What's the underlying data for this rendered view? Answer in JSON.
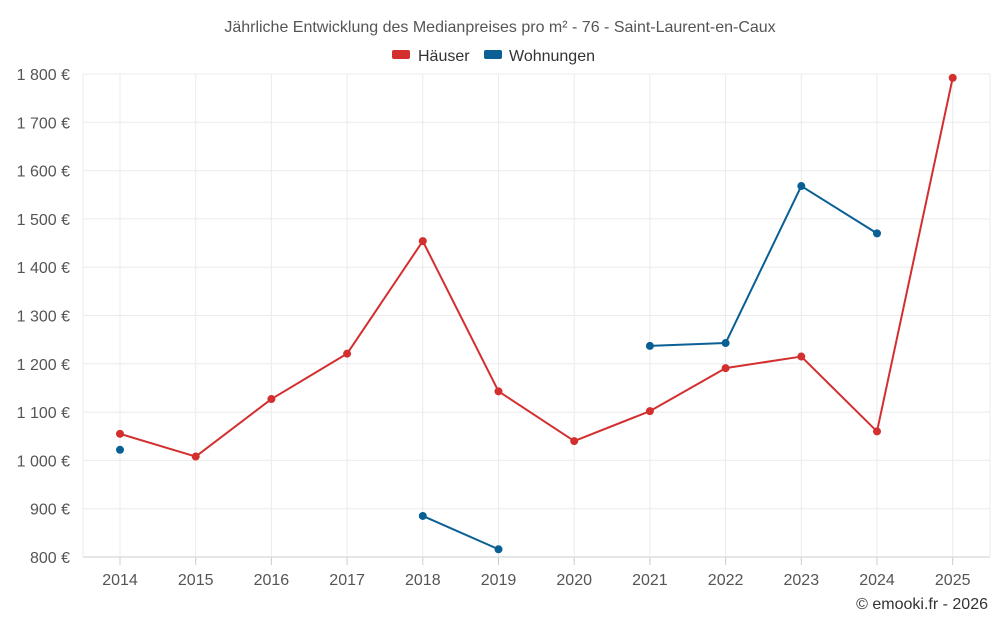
{
  "chart_data": {
    "type": "line",
    "title": "Jährliche Entwicklung des Medianpreises pro m² - 76 - Saint-Laurent-en-Caux",
    "x": [
      "2014",
      "2015",
      "2016",
      "2017",
      "2018",
      "2019",
      "2020",
      "2021",
      "2022",
      "2023",
      "2024",
      "2025"
    ],
    "yticks": [
      "800 €",
      "900 €",
      "1 000 €",
      "1 100 €",
      "1 200 €",
      "1 300 €",
      "1 400 €",
      "1 500 €",
      "1 600 €",
      "1 700 €",
      "1 800 €"
    ],
    "ylim": [
      800,
      1800
    ],
    "grid": true,
    "legend_position": "top-center",
    "series": [
      {
        "name": "Häuser",
        "color": "#d32f2f",
        "values": [
          1055,
          1008,
          1127,
          1221,
          1454,
          1143,
          1040,
          1102,
          1191,
          1215,
          1060,
          1792
        ]
      },
      {
        "name": "Wohnungen",
        "color": "#0a5f95",
        "values": [
          1022,
          null,
          null,
          null,
          885,
          816,
          null,
          1237,
          1243,
          1568,
          1470,
          null
        ]
      }
    ],
    "credit": "© emooki.fr - 2026"
  }
}
